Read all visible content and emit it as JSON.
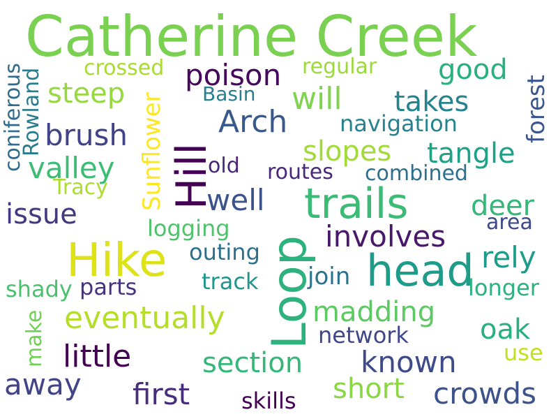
{
  "words": [
    {
      "text": "Catherine Creek",
      "color": "#7ad151"
    },
    {
      "text": "Hike",
      "color": "#dde318"
    },
    {
      "text": "Loop",
      "color": "#2db27d"
    },
    {
      "text": "Hill",
      "color": "#440154"
    },
    {
      "text": "trails",
      "color": "#3bbb75"
    },
    {
      "text": "head",
      "color": "#1e9c89"
    },
    {
      "text": "poison",
      "color": "#46085c"
    },
    {
      "text": "Arch",
      "color": "#38598c"
    },
    {
      "text": "brush",
      "color": "#404387"
    },
    {
      "text": "valley",
      "color": "#3dbc74"
    },
    {
      "text": "steep",
      "color": "#95d840"
    },
    {
      "text": "will",
      "color": "#7fd34e"
    },
    {
      "text": "takes",
      "color": "#25838e"
    },
    {
      "text": "good",
      "color": "#2ab07f"
    },
    {
      "text": "slopes",
      "color": "#a2da37"
    },
    {
      "text": "tangle",
      "color": "#1fa187"
    },
    {
      "text": "deer",
      "color": "#35b779"
    },
    {
      "text": "involves",
      "color": "#48186a"
    },
    {
      "text": "rely",
      "color": "#1e9b8a"
    },
    {
      "text": "well",
      "color": "#3b528b"
    },
    {
      "text": "issue",
      "color": "#453882"
    },
    {
      "text": "eventually",
      "color": "#b5de2b"
    },
    {
      "text": "madding",
      "color": "#5ec962"
    },
    {
      "text": "oak",
      "color": "#2ab07f"
    },
    {
      "text": "little",
      "color": "#440154"
    },
    {
      "text": "section",
      "color": "#35b779"
    },
    {
      "text": "known",
      "color": "#3e4a89"
    },
    {
      "text": "away",
      "color": "#414487"
    },
    {
      "text": "first",
      "color": "#472d7b"
    },
    {
      "text": "short",
      "color": "#8bd646"
    },
    {
      "text": "crowds",
      "color": "#3b528b"
    },
    {
      "text": "skills",
      "color": "#440154"
    },
    {
      "text": "crossed",
      "color": "#a8db34"
    },
    {
      "text": "regular",
      "color": "#9bd93c"
    },
    {
      "text": "Basin",
      "color": "#277f8e"
    },
    {
      "text": "navigation",
      "color": "#26828e"
    },
    {
      "text": "old",
      "color": "#482677"
    },
    {
      "text": "routes",
      "color": "#482979"
    },
    {
      "text": "combined",
      "color": "#2d708e"
    },
    {
      "text": "Tracy",
      "color": "#addc30"
    },
    {
      "text": "logging",
      "color": "#4ec36b"
    },
    {
      "text": "area",
      "color": "#3e4989"
    },
    {
      "text": "outing",
      "color": "#2d708e"
    },
    {
      "text": "join",
      "color": "#2c728e"
    },
    {
      "text": "track",
      "color": "#1f958b"
    },
    {
      "text": "parts",
      "color": "#46327e"
    },
    {
      "text": "shady",
      "color": "#4ac16d"
    },
    {
      "text": "longer",
      "color": "#2db27d"
    },
    {
      "text": "network",
      "color": "#3f4788"
    },
    {
      "text": "use",
      "color": "#c2df23"
    },
    {
      "text": "make",
      "color": "#70cf57"
    },
    {
      "text": "coniferous",
      "color": "#2f6c8e"
    },
    {
      "text": "Rowland",
      "color": "#287c8e"
    },
    {
      "text": "Sunflower",
      "color": "#fde725"
    },
    {
      "text": "forest",
      "color": "#3a548c"
    }
  ]
}
